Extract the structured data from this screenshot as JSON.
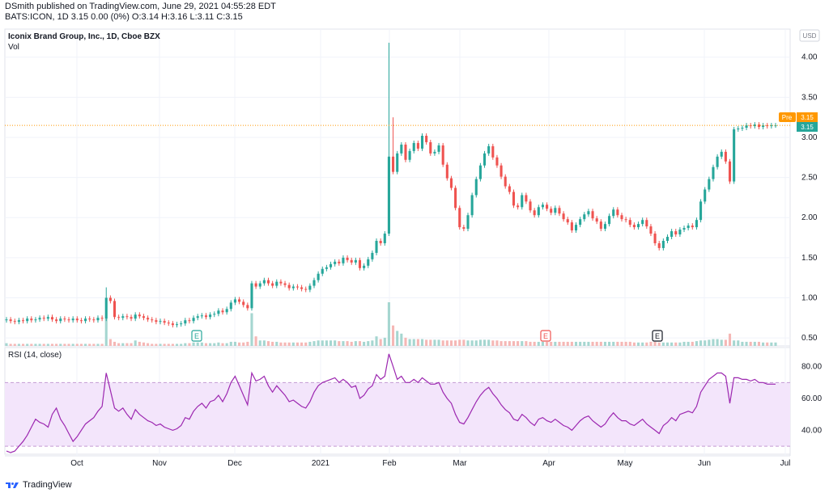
{
  "header": {
    "published": "DSmith published on TradingView.com, June 29, 2021 04:55:28 EDT",
    "ohlc": "BATS:ICON, 1D  3.15 0.00 (0%) O:3.14 H:3.16 L:3.11 C:3.15"
  },
  "footer": {
    "brand": "TradingView",
    "logo_icon": "tradingview-logo-icon"
  },
  "colors": {
    "up": "#26a69a",
    "down": "#ef5350",
    "rsi": "#9c27b0",
    "rsi_band": "#f3e5fb",
    "pre": "#ff9800"
  },
  "chart_data": [
    {
      "type": "candlestick",
      "title": "Iconix Brand Group, Inc., 1D, Cboe BZX",
      "subtitle": "Vol",
      "currency": "USD",
      "y_ticks": [
        "4.00",
        "3.50",
        "3.00",
        "2.50",
        "2.00",
        "1.50",
        "1.00",
        "0.50"
      ],
      "ylim": [
        0.4,
        4.35
      ],
      "x_ticks": [
        "Oct",
        "Nov",
        "Dec",
        "2021",
        "Feb",
        "Mar",
        "Apr",
        "May",
        "Jun",
        "Jul"
      ],
      "price_label": "3.15",
      "pre_label": "Pre",
      "pre_value": "3.15",
      "closes": [
        0.73,
        0.71,
        0.7,
        0.72,
        0.71,
        0.74,
        0.72,
        0.73,
        0.75,
        0.74,
        0.76,
        0.73,
        0.71,
        0.74,
        0.73,
        0.72,
        0.74,
        0.72,
        0.71,
        0.74,
        0.73,
        0.72,
        0.75,
        0.74,
        1.0,
        0.96,
        0.76,
        0.75,
        0.77,
        0.76,
        0.74,
        0.79,
        0.77,
        0.75,
        0.73,
        0.72,
        0.7,
        0.71,
        0.69,
        0.68,
        0.66,
        0.67,
        0.68,
        0.72,
        0.71,
        0.75,
        0.77,
        0.78,
        0.76,
        0.79,
        0.8,
        0.84,
        0.82,
        0.86,
        0.94,
        0.98,
        0.95,
        0.91,
        0.87,
        1.18,
        1.14,
        1.18,
        1.22,
        1.18,
        1.15,
        1.2,
        1.18,
        1.16,
        1.12,
        1.14,
        1.13,
        1.11,
        1.1,
        1.15,
        1.22,
        1.3,
        1.36,
        1.38,
        1.42,
        1.45,
        1.43,
        1.5,
        1.47,
        1.44,
        1.47,
        1.37,
        1.4,
        1.48,
        1.56,
        1.71,
        1.68,
        1.8,
        2.76,
        2.57,
        2.8,
        2.91,
        2.72,
        2.83,
        2.93,
        2.86,
        3.02,
        2.94,
        2.8,
        2.82,
        2.9,
        2.66,
        2.49,
        2.37,
        2.12,
        1.88,
        1.86,
        2.03,
        2.28,
        2.48,
        2.65,
        2.8,
        2.89,
        2.75,
        2.65,
        2.51,
        2.39,
        2.32,
        2.15,
        2.13,
        2.28,
        2.2,
        2.09,
        2.03,
        2.13,
        2.16,
        2.11,
        2.06,
        2.12,
        2.05,
        1.98,
        1.94,
        1.84,
        1.91,
        1.98,
        2.04,
        2.08,
        1.99,
        1.95,
        1.86,
        1.92,
        2.02,
        2.1,
        2.03,
        1.98,
        1.97,
        1.91,
        1.88,
        1.92,
        1.97,
        1.89,
        1.8,
        1.68,
        1.62,
        1.71,
        1.76,
        1.83,
        1.79,
        1.85,
        1.87,
        1.9,
        1.88,
        1.97,
        2.2,
        2.35,
        2.48,
        2.63,
        2.76,
        2.82,
        2.7,
        2.45,
        3.1,
        3.11,
        3.12,
        3.15,
        3.14,
        3.16,
        3.13,
        3.15,
        3.14,
        3.15,
        3.15
      ],
      "highs_spike": 4.18,
      "volumes": [
        4,
        3,
        3,
        3,
        3,
        3,
        3,
        3,
        3,
        3,
        3,
        3,
        3,
        3,
        3,
        3,
        3,
        3,
        3,
        3,
        3,
        3,
        3,
        3,
        40,
        10,
        6,
        4,
        4,
        4,
        4,
        8,
        6,
        5,
        4,
        3,
        3,
        3,
        3,
        3,
        3,
        3,
        3,
        4,
        4,
        5,
        5,
        5,
        4,
        4,
        4,
        5,
        4,
        4,
        6,
        6,
        5,
        5,
        6,
        48,
        14,
        8,
        8,
        7,
        6,
        6,
        5,
        5,
        5,
        5,
        5,
        5,
        5,
        6,
        7,
        8,
        8,
        8,
        8,
        8,
        7,
        7,
        7,
        6,
        7,
        7,
        6,
        7,
        8,
        14,
        10,
        12,
        64,
        30,
        22,
        18,
        12,
        10,
        10,
        10,
        10,
        9,
        9,
        9,
        9,
        8,
        8,
        8,
        8,
        9,
        9,
        8,
        8,
        8,
        9,
        9,
        9,
        8,
        8,
        7,
        7,
        7,
        7,
        7,
        7,
        7,
        6,
        6,
        6,
        6,
        6,
        6,
        6,
        6,
        6,
        6,
        6,
        6,
        6,
        6,
        6,
        6,
        6,
        6,
        6,
        6,
        6,
        6,
        6,
        6,
        6,
        5,
        5,
        5,
        5,
        6,
        6,
        5,
        5,
        5,
        5,
        5,
        5,
        6,
        6,
        6,
        7,
        8,
        8,
        9,
        10,
        10,
        9,
        9,
        18,
        8,
        8,
        6,
        6,
        6,
        6,
        6,
        5,
        5,
        5,
        5
      ],
      "vol_colors_up_index": [],
      "events": [
        "E",
        "E",
        "E"
      ]
    },
    {
      "type": "line",
      "title": "RSI (14, close)",
      "y_ticks": [
        "80.00",
        "60.00",
        "40.00"
      ],
      "ylim": [
        25,
        92
      ],
      "bands": [
        30,
        70
      ],
      "values": [
        27,
        26,
        27,
        30,
        33,
        37,
        42,
        47,
        45,
        44,
        42,
        50,
        54,
        47,
        43,
        38,
        33,
        36,
        40,
        44,
        46,
        48,
        52,
        55,
        76,
        65,
        54,
        52,
        54,
        50,
        47,
        53,
        50,
        48,
        46,
        45,
        43,
        44,
        42,
        41,
        40,
        41,
        43,
        48,
        47,
        52,
        55,
        57,
        54,
        58,
        59,
        62,
        58,
        63,
        70,
        74,
        68,
        62,
        56,
        76,
        71,
        72,
        74,
        68,
        64,
        68,
        65,
        62,
        58,
        59,
        57,
        55,
        54,
        58,
        64,
        68,
        70,
        71,
        72,
        73,
        70,
        72,
        70,
        67,
        68,
        60,
        62,
        66,
        68,
        75,
        72,
        74,
        88,
        80,
        72,
        74,
        70,
        70,
        72,
        70,
        73,
        71,
        69,
        69,
        70,
        64,
        60,
        57,
        50,
        45,
        44,
        48,
        53,
        58,
        62,
        65,
        67,
        63,
        60,
        56,
        53,
        51,
        47,
        46,
        50,
        48,
        45,
        43,
        47,
        48,
        46,
        45,
        47,
        45,
        43,
        42,
        40,
        43,
        46,
        48,
        49,
        46,
        44,
        42,
        44,
        48,
        51,
        48,
        46,
        46,
        44,
        43,
        45,
        47,
        44,
        42,
        40,
        38,
        43,
        45,
        48,
        46,
        50,
        51,
        52,
        51,
        55,
        64,
        68,
        72,
        74,
        76,
        76,
        74,
        57,
        73,
        73,
        72,
        72,
        71,
        72,
        70,
        70,
        69,
        69,
        69
      ]
    }
  ]
}
